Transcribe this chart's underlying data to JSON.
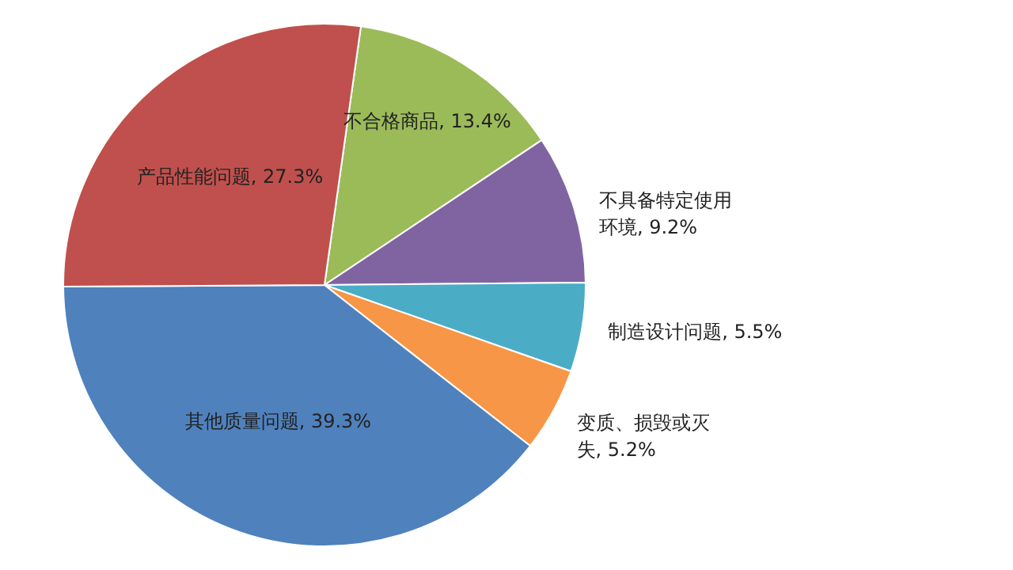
{
  "chart_data": {
    "type": "pie",
    "categories": [
      "不合格商品",
      "不具备特定使用环境",
      "制造设计问题",
      "变质、损毁或灭失",
      "其他质量问题",
      "产品性能问题"
    ],
    "values": [
      13.4,
      9.2,
      5.5,
      5.2,
      39.3,
      27.3
    ],
    "value_labels": [
      "13.4%",
      "9.2%",
      "5.5%",
      "5.2%",
      "39.3%",
      "27.3%"
    ],
    "colors": [
      "#9bbb59",
      "#8064a2",
      "#4bacc6",
      "#f79646",
      "#4f81bd",
      "#c0504d"
    ]
  }
}
